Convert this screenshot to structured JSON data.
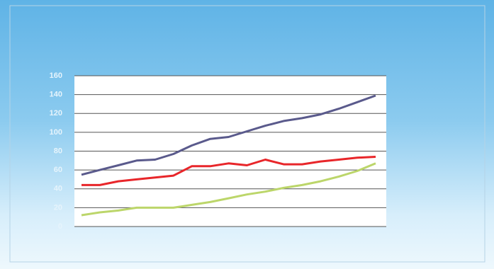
{
  "chart_data": {
    "type": "line",
    "categories": [
      null,
      null,
      null,
      null,
      null,
      null,
      null,
      null,
      null,
      null,
      null,
      null,
      null,
      null,
      null,
      null,
      null
    ],
    "series": [
      {
        "color": "#5a5a8c",
        "values": [
          55,
          60,
          65,
          70,
          71,
          77,
          86,
          93,
          95,
          101,
          107,
          112,
          115,
          119,
          125,
          132,
          139
        ]
      },
      {
        "color": "#e8262a",
        "values": [
          44,
          44,
          48,
          50,
          52,
          54,
          64,
          64,
          67,
          65,
          71,
          66,
          66,
          69,
          71,
          73,
          74
        ]
      },
      {
        "color": "#bcd66a",
        "values": [
          12,
          15,
          17,
          20,
          20,
          20,
          23,
          26,
          30,
          34,
          37,
          41,
          44,
          48,
          53,
          59,
          67
        ]
      }
    ],
    "ylim": [
      0,
      160
    ],
    "yticks": [
      0,
      20,
      40,
      60,
      80,
      100,
      120,
      140,
      160
    ],
    "grid": true
  }
}
